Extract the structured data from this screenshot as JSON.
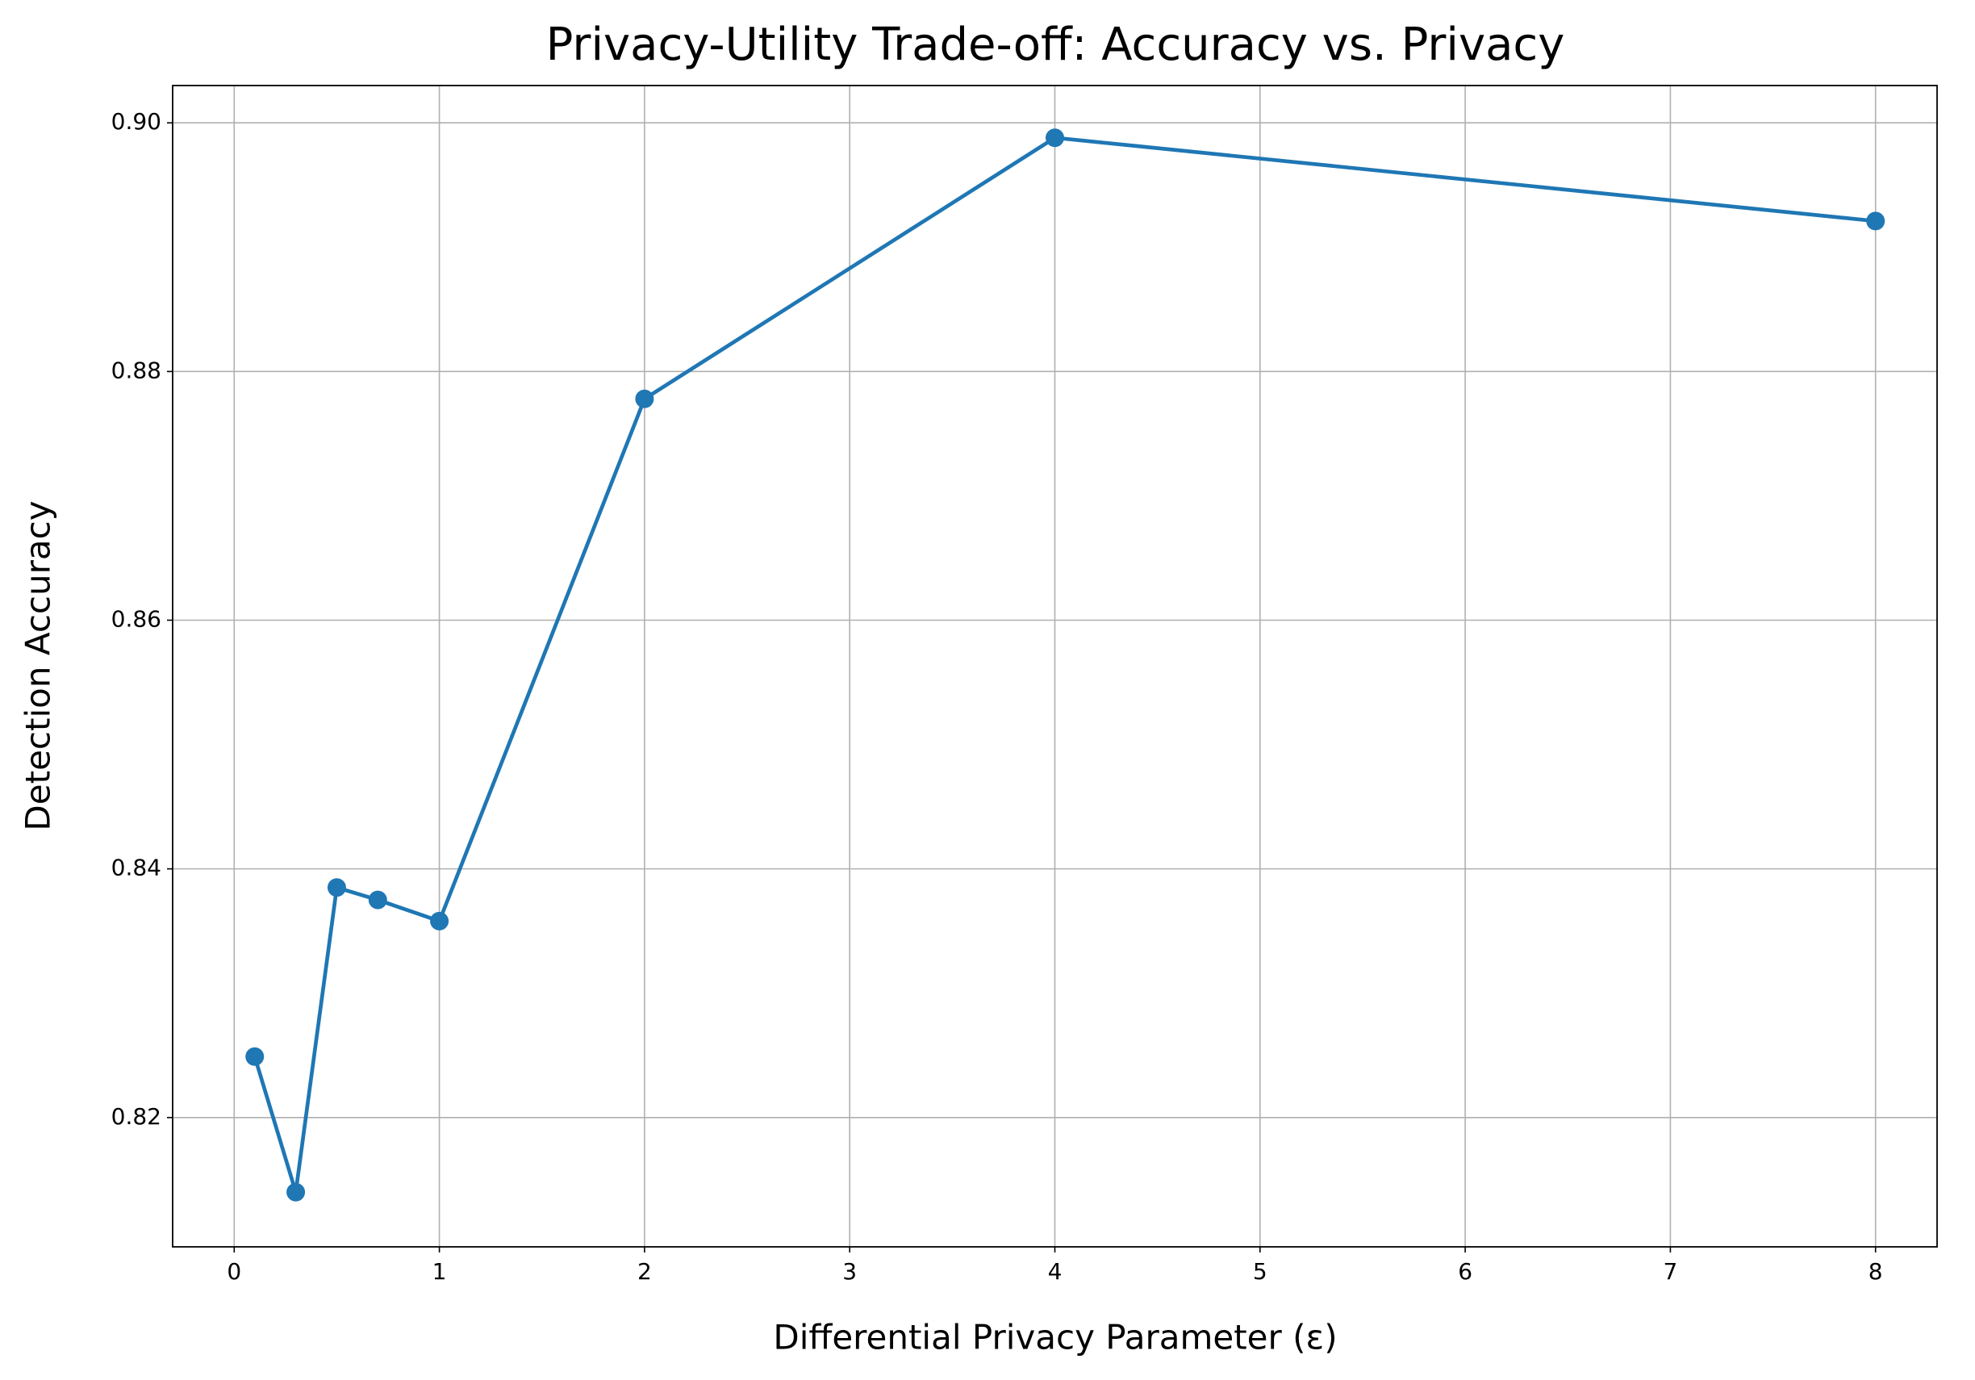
{
  "chart_data": {
    "type": "line",
    "title": "Privacy-Utility Trade-off: Accuracy vs. Privacy",
    "x_label": "Differential Privacy Parameter (ε)",
    "y_label": "Detection Accuracy",
    "x": [
      0.1,
      0.3,
      0.5,
      0.7,
      1,
      2,
      4,
      8
    ],
    "series": [
      {
        "color": "#1f77b4",
        "values": [
          0.8249,
          0.814,
          0.8385,
          0.8375,
          0.8358,
          0.8778,
          0.8988,
          0.8921
        ]
      }
    ],
    "xlim": [
      -0.3,
      8.3
    ],
    "ylim": [
      0.8096,
      0.903
    ],
    "xticks": [
      0,
      1,
      2,
      3,
      4,
      5,
      6,
      7,
      8
    ],
    "yticks": [
      0.82,
      0.84,
      0.86,
      0.88,
      {
        "value": 0.9,
        "label": "0.90"
      }
    ],
    "grid": true
  }
}
